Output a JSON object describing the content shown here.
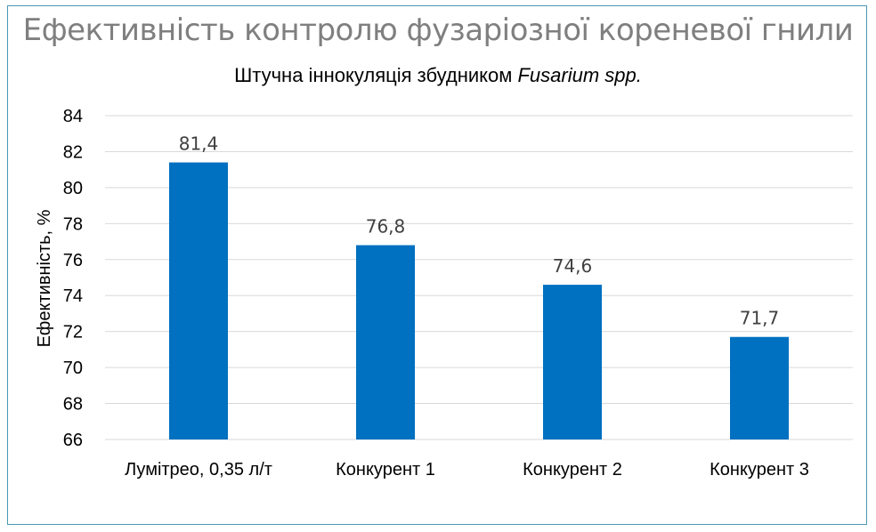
{
  "chart_data": {
    "type": "bar",
    "title": "Ефективність контролю фузаріозної кореневої гнили",
    "subtitle_prefix": "Штучна іннокуляція збудником ",
    "subtitle_italic": "Fusarium spp.",
    "xlabel": "",
    "ylabel": "Ефективність, %",
    "ylim": [
      66,
      84
    ],
    "yticks": [
      66,
      68,
      70,
      72,
      74,
      76,
      78,
      80,
      82,
      84
    ],
    "categories": [
      "Лумітрео, 0,35 л/т",
      "Конкурент 1",
      "Конкурент 2",
      "Конкурент 3"
    ],
    "values": [
      81.4,
      76.8,
      74.6,
      71.7
    ],
    "data_labels": [
      "81,4",
      "76,8",
      "74,6",
      "71,7"
    ],
    "grid": true,
    "legend": "none",
    "bar_color": "#0070c0",
    "grid_color": "#d9d9d9",
    "border_color": "#4a98b4"
  }
}
